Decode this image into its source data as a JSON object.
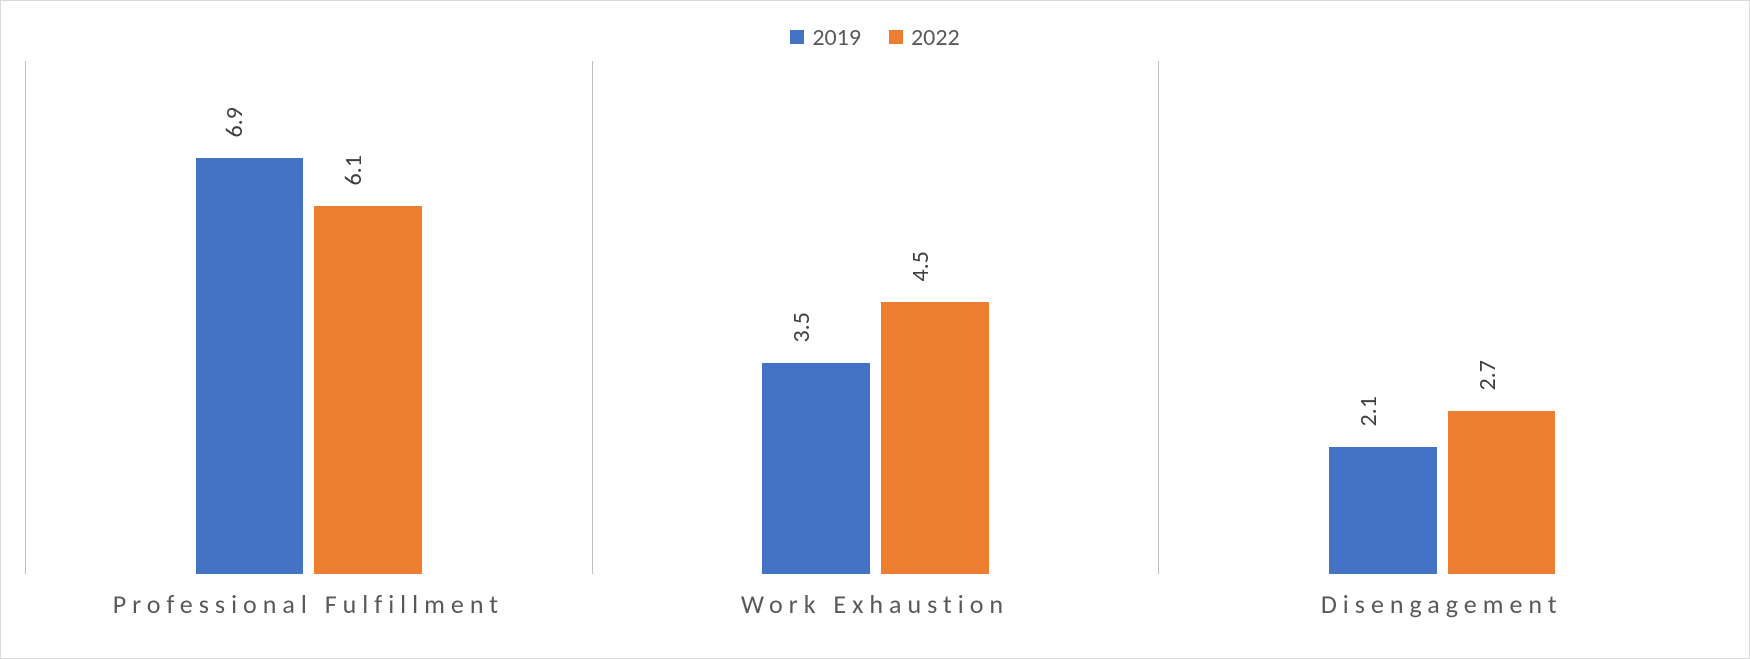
{
  "chart": {
    "type": "bar",
    "background_color": "#ffffff",
    "border_color": "#d9d9d9",
    "axis_color": "#bfbfbf",
    "ymax": 8.5,
    "bar_gap_ratio": 0.02,
    "group_inner_pad_ratio": 0.3,
    "label_fontsize": 24,
    "category_fontsize": 26,
    "category_letter_spacing": 6,
    "series": [
      {
        "name": "2019",
        "color": "#4472c4"
      },
      {
        "name": "2022",
        "color": "#ed7d31"
      }
    ],
    "categories": [
      {
        "label": "Professional Fulfillment",
        "values": [
          6.9,
          6.1
        ],
        "value_labels": [
          "6.9",
          "6.1"
        ]
      },
      {
        "label": "Work Exhaustion",
        "values": [
          3.5,
          4.5
        ],
        "value_labels": [
          "3.5",
          "4.5"
        ]
      },
      {
        "label": "Disengagement",
        "values": [
          2.1,
          2.7
        ],
        "value_labels": [
          "2.1",
          "2.7"
        ]
      }
    ]
  }
}
